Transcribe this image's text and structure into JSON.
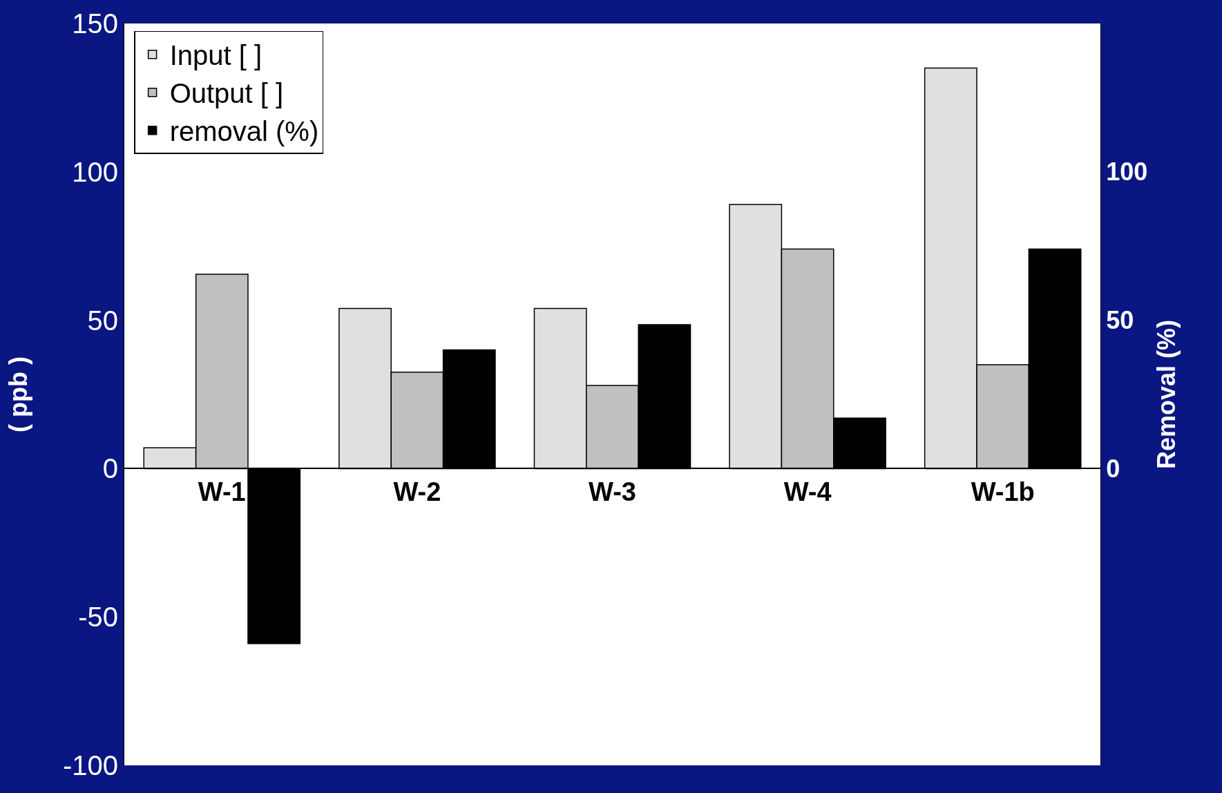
{
  "chart_data": {
    "type": "bar",
    "ylabel": "( ppb )",
    "y2label": "Removal (%)",
    "categories": [
      "W-1",
      "W-2",
      "W-3",
      "W-4",
      "W-1b"
    ],
    "series": [
      {
        "name": "Input [ ]",
        "color": "#e0e0e0",
        "values": [
          7,
          54,
          54,
          89,
          135
        ]
      },
      {
        "name": "Output [ ]",
        "color": "#c0c0c0",
        "values": [
          65.5,
          32.5,
          28,
          74,
          35
        ]
      },
      {
        "name": "removal (%)",
        "color": "#000000",
        "values": [
          -59,
          40,
          48.5,
          17,
          74
        ],
        "axis": "y2"
      }
    ],
    "ylim": [
      -100,
      150
    ],
    "yticks": [
      -100,
      -50,
      0,
      50,
      100,
      150
    ],
    "y2lim": [
      -100,
      150
    ],
    "y2ticks": [
      0,
      50,
      100
    ],
    "legend": "top left"
  }
}
